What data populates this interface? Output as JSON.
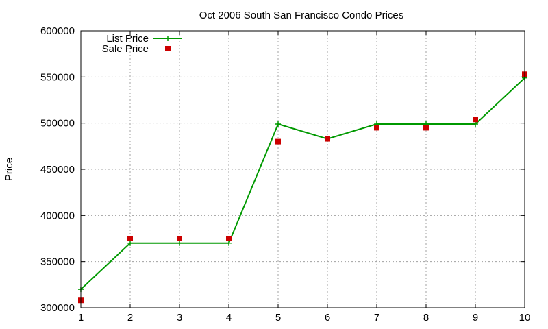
{
  "chart_data": {
    "type": "line",
    "title": "Oct 2006 South San Francisco Condo Prices",
    "xlabel": "",
    "ylabel": "Price",
    "x": [
      1,
      2,
      3,
      4,
      5,
      6,
      7,
      8,
      9,
      10
    ],
    "xlim": [
      1,
      10
    ],
    "ylim": [
      300000,
      600000
    ],
    "xticks": [
      "1",
      "2",
      "3",
      "4",
      "5",
      "6",
      "7",
      "8",
      "9",
      "10"
    ],
    "yticks": [
      "300000",
      "350000",
      "400000",
      "450000",
      "500000",
      "550000",
      "600000"
    ],
    "grid": true,
    "legend_position": "top-left",
    "series": [
      {
        "name": "List Price",
        "style": "line-with-plus-markers",
        "color": "#009900",
        "values": [
          320000,
          370000,
          370000,
          370000,
          499000,
          483000,
          499000,
          499000,
          499000,
          549000
        ]
      },
      {
        "name": "Sale Price",
        "style": "square-markers",
        "color": "#cc0000",
        "values": [
          308000,
          375000,
          375000,
          375000,
          480000,
          483000,
          495000,
          495000,
          504000,
          553000
        ]
      }
    ]
  }
}
